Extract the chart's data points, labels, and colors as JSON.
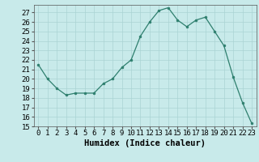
{
  "x": [
    0,
    1,
    2,
    3,
    4,
    5,
    6,
    7,
    8,
    9,
    10,
    11,
    12,
    13,
    14,
    15,
    16,
    17,
    18,
    19,
    20,
    21,
    22,
    23
  ],
  "y": [
    21.5,
    20.0,
    19.0,
    18.3,
    18.5,
    18.5,
    18.5,
    19.5,
    20.0,
    21.2,
    22.0,
    24.5,
    26.0,
    27.2,
    27.5,
    26.2,
    25.5,
    26.2,
    26.5,
    25.0,
    23.5,
    20.2,
    17.5,
    15.3
  ],
  "line_color": "#2e7f6e",
  "marker": "o",
  "marker_size": 2,
  "bg_color": "#c8eaea",
  "grid_color": "#aad4d4",
  "xlabel": "Humidex (Indice chaleur)",
  "ylim": [
    15,
    27.8
  ],
  "yticks": [
    15,
    16,
    17,
    18,
    19,
    20,
    21,
    22,
    23,
    24,
    25,
    26,
    27
  ],
  "xlim": [
    -0.5,
    23.5
  ],
  "xticks": [
    0,
    1,
    2,
    3,
    4,
    5,
    6,
    7,
    8,
    9,
    10,
    11,
    12,
    13,
    14,
    15,
    16,
    17,
    18,
    19,
    20,
    21,
    22,
    23
  ],
  "xlabel_fontsize": 7.5,
  "tick_fontsize": 6.5
}
